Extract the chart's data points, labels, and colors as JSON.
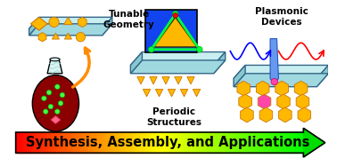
{
  "title_text": "Synthesis, Assembly, and Applications",
  "tunable_label": "Tunable\nGeometry",
  "periodic_label": "Periodic\nStructures",
  "plasmonic_label": "Plasmonic\nDevices",
  "bg_color": "#ffffff",
  "gold_color": "#FFB800",
  "gold_dark": "#CC7700",
  "plate_top": "#c8eef0",
  "plate_side": "#88c8d0",
  "plate_bottom": "#a0d8e0",
  "label_fontsize": 7.5,
  "title_fontsize": 10.5
}
